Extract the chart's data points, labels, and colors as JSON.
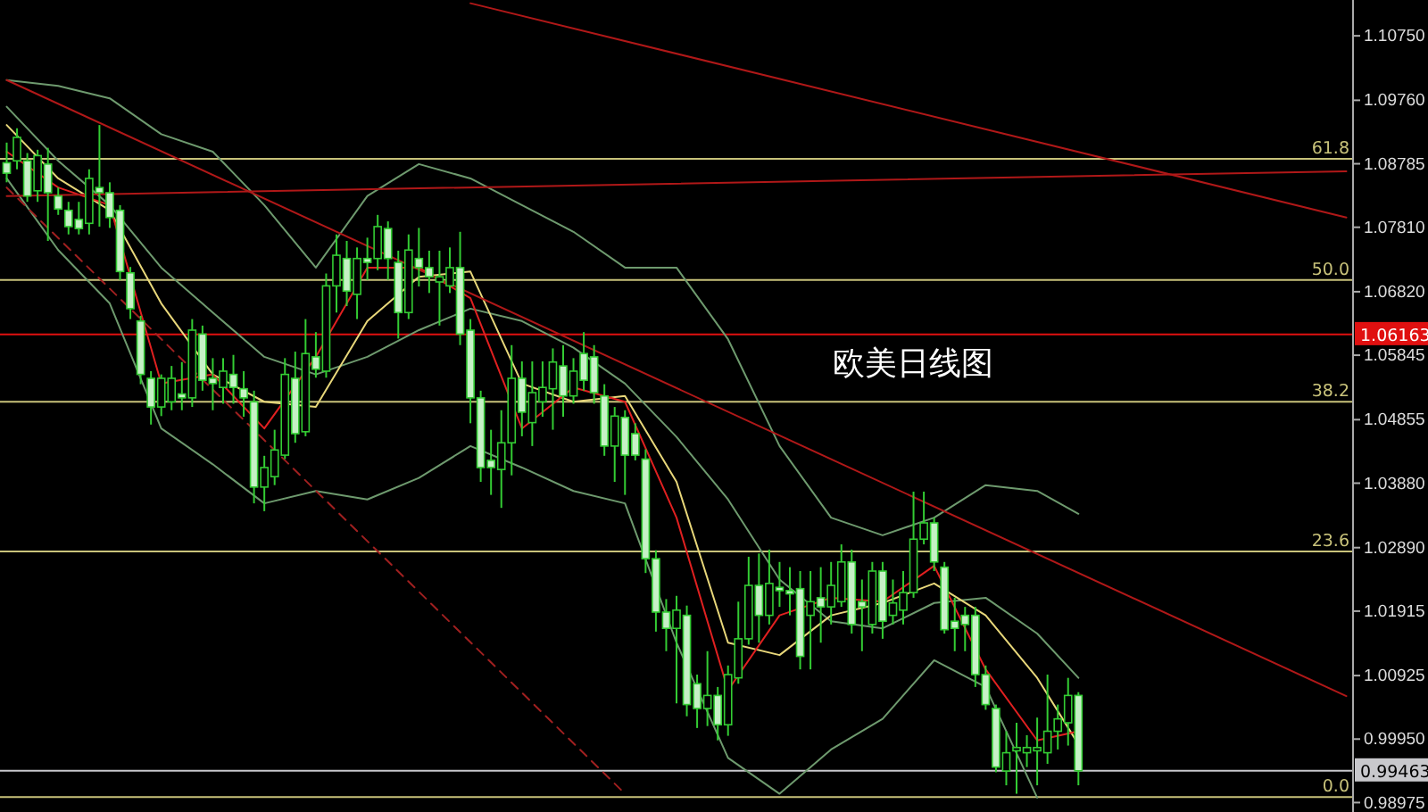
{
  "chart_data": {
    "type": "candlestick",
    "title": "欧美日线图",
    "color": "#33cc33",
    "categories": [
      null,
      null,
      null,
      null,
      null,
      null,
      null,
      null,
      null,
      null,
      null,
      null,
      null,
      null,
      null,
      null,
      null,
      null,
      null,
      null,
      null,
      null,
      null,
      null,
      null,
      null,
      null,
      null,
      null,
      null,
      null,
      null,
      null,
      null,
      null,
      null,
      null,
      null,
      null,
      null,
      null,
      null,
      null,
      null,
      null,
      null,
      null,
      null,
      null,
      null,
      null,
      null,
      null,
      null,
      null,
      null,
      null,
      null,
      null,
      null,
      null,
      null,
      null,
      null,
      null,
      null,
      null,
      null,
      null,
      null,
      null,
      null,
      null,
      null,
      null,
      null,
      null,
      null,
      null,
      null,
      null,
      null,
      null,
      null,
      null,
      null,
      null,
      null,
      null,
      null,
      null,
      null,
      null,
      null,
      null,
      null,
      null,
      null,
      null,
      null,
      null,
      null,
      null,
      null,
      null,
      null,
      null,
      null,
      null,
      null,
      null,
      null,
      null,
      null,
      null,
      null,
      null,
      null,
      null,
      null,
      null,
      null,
      null,
      null,
      null,
      null,
      null,
      null,
      null,
      null,
      null
    ],
    "ohlc": [
      [
        1.088,
        1.0911,
        1.085,
        1.0864
      ],
      [
        1.0883,
        1.0933,
        1.087,
        1.0919
      ],
      [
        1.0883,
        1.0895,
        1.082,
        1.0829
      ],
      [
        1.0837,
        1.09,
        1.082,
        1.0891
      ],
      [
        1.0878,
        1.0903,
        1.076,
        1.0834
      ],
      [
        1.0829,
        1.0842,
        1.08,
        1.0809
      ],
      [
        1.0807,
        1.082,
        1.077,
        1.0782
      ],
      [
        1.0793,
        1.082,
        1.077,
        1.0779
      ],
      [
        1.0787,
        1.087,
        1.077,
        1.0856
      ],
      [
        1.0842,
        1.0938,
        1.0782,
        1.0834
      ],
      [
        1.0834,
        1.085,
        1.078,
        1.0796
      ],
      [
        1.0807,
        1.0815,
        1.07,
        1.0713
      ],
      [
        1.0711,
        1.072,
        1.064,
        1.0656
      ],
      [
        1.0637,
        1.0645,
        1.054,
        1.0555
      ],
      [
        1.0549,
        1.056,
        1.0478,
        1.0505
      ],
      [
        1.0505,
        1.0555,
        1.0491,
        1.0549
      ],
      [
        1.0513,
        1.0568,
        1.05,
        1.0549
      ],
      [
        1.0525,
        1.0574,
        1.05,
        1.0519
      ],
      [
        1.0519,
        1.064,
        1.0505,
        1.0623
      ],
      [
        1.0617,
        1.063,
        1.053,
        1.0546
      ],
      [
        1.0549,
        1.058,
        1.05,
        1.0541
      ],
      [
        1.0535,
        1.058,
        1.051,
        1.056
      ],
      [
        1.0555,
        1.0585,
        1.051,
        1.0535
      ],
      [
        1.0533,
        1.056,
        1.049,
        1.0519
      ],
      [
        1.0513,
        1.053,
        1.0357,
        1.0382
      ],
      [
        1.0382,
        1.043,
        1.0345,
        1.0412
      ],
      [
        1.0398,
        1.047,
        1.0385,
        1.0439
      ],
      [
        1.0431,
        1.058,
        1.0425,
        1.0555
      ],
      [
        1.0549,
        1.059,
        1.045,
        1.0464
      ],
      [
        1.0467,
        1.064,
        1.046,
        1.0587
      ],
      [
        1.0582,
        1.062,
        1.055,
        1.0563
      ],
      [
        1.056,
        1.071,
        1.055,
        1.0691
      ],
      [
        1.0691,
        1.077,
        1.065,
        1.0738
      ],
      [
        1.0733,
        1.076,
        1.066,
        1.0683
      ],
      [
        1.0678,
        1.075,
        1.064,
        1.0733
      ],
      [
        1.0733,
        1.0765,
        1.07,
        1.0727
      ],
      [
        1.0733,
        1.08,
        1.0715,
        1.0782
      ],
      [
        1.0779,
        1.079,
        1.07,
        1.0733
      ],
      [
        1.0727,
        1.0745,
        1.061,
        1.065
      ],
      [
        1.065,
        1.077,
        1.064,
        1.0746
      ],
      [
        1.0733,
        1.078,
        1.069,
        1.0719
      ],
      [
        1.0719,
        1.0745,
        1.068,
        1.0705
      ],
      [
        1.0697,
        1.0745,
        1.063,
        1.0705
      ],
      [
        1.0691,
        1.075,
        1.068,
        1.0719
      ],
      [
        1.0719,
        1.0774,
        1.06,
        1.0617
      ],
      [
        1.0623,
        1.064,
        1.048,
        1.0519
      ],
      [
        1.0519,
        1.053,
        1.039,
        1.0412
      ],
      [
        1.0423,
        1.047,
        1.037,
        1.0412
      ],
      [
        1.0409,
        1.05,
        1.035,
        1.045
      ],
      [
        1.045,
        1.06,
        1.04,
        1.0549
      ],
      [
        1.0549,
        1.0575,
        1.046,
        1.0497
      ],
      [
        1.0481,
        1.0575,
        1.0445,
        1.0527
      ],
      [
        1.0513,
        1.0575,
        1.049,
        1.0535
      ],
      [
        1.0533,
        1.0595,
        1.047,
        1.0574
      ],
      [
        1.0568,
        1.06,
        1.049,
        1.0522
      ],
      [
        1.0522,
        1.058,
        1.051,
        1.056
      ],
      [
        1.0587,
        1.062,
        1.053,
        1.0546
      ],
      [
        1.0582,
        1.06,
        1.051,
        1.0527
      ],
      [
        1.0522,
        1.054,
        1.043,
        1.0445
      ],
      [
        1.0445,
        1.0505,
        1.039,
        1.0491
      ],
      [
        1.0489,
        1.05,
        1.037,
        1.0431
      ],
      [
        1.0464,
        1.048,
        1.0423,
        1.0431
      ],
      [
        1.0425,
        1.044,
        1.025,
        1.0272
      ],
      [
        1.0272,
        1.0285,
        1.016,
        1.019
      ],
      [
        1.019,
        1.021,
        1.013,
        1.0165
      ],
      [
        1.0165,
        1.0215,
        1.005,
        1.0193
      ],
      [
        1.0185,
        1.02,
        1.003,
        1.0048
      ],
      [
        1.008,
        1.0094,
        1.0012,
        1.0042
      ],
      [
        1.0042,
        1.013,
        1.0015,
        1.0062
      ],
      [
        1.0062,
        1.0075,
        0.9993,
        1.0017
      ],
      [
        1.0017,
        1.0108,
        1.0,
        1.0094
      ],
      [
        1.0089,
        1.0206,
        1.008,
        1.0149
      ],
      [
        1.0149,
        1.0275,
        1.014,
        1.0231
      ],
      [
        1.0231,
        1.028,
        1.0143,
        1.0185
      ],
      [
        1.0185,
        1.0286,
        1.0171,
        1.0234
      ],
      [
        1.0228,
        1.0267,
        1.0198,
        1.0223
      ],
      [
        1.0223,
        1.0259,
        1.0185,
        1.0218
      ],
      [
        1.0226,
        1.0253,
        1.0102,
        1.0122
      ],
      [
        1.0185,
        1.0253,
        1.0102,
        1.0206
      ],
      [
        1.0212,
        1.0259,
        1.0143,
        1.0198
      ],
      [
        1.0198,
        1.0267,
        1.0171,
        1.0231
      ],
      [
        1.0206,
        1.0294,
        1.0198,
        1.0267
      ],
      [
        1.0267,
        1.0286,
        1.0157,
        1.0171
      ],
      [
        1.0206,
        1.024,
        1.013,
        1.0198
      ],
      [
        1.0171,
        1.0267,
        1.0157,
        1.0253
      ],
      [
        1.0253,
        1.0267,
        1.0149,
        1.0176
      ],
      [
        1.0185,
        1.024,
        1.0171,
        1.0204
      ],
      [
        1.0193,
        1.0253,
        1.0171,
        1.022
      ],
      [
        1.022,
        1.0375,
        1.0212,
        1.0302
      ],
      [
        1.0302,
        1.0375,
        1.0294,
        1.0327
      ],
      [
        1.0327,
        1.0335,
        1.0253,
        1.0267
      ],
      [
        1.0259,
        1.0267,
        1.0157,
        1.0163
      ],
      [
        1.0176,
        1.0212,
        1.013,
        1.0165
      ],
      [
        1.0185,
        1.0198,
        1.013,
        1.0171
      ],
      [
        1.0185,
        1.0198,
        1.0075,
        1.0094
      ],
      [
        1.0094,
        1.0108,
        1.004,
        1.0048
      ],
      [
        1.0042,
        1.0048,
        0.9944,
        0.9952
      ],
      [
        0.9946,
        1.0007,
        0.9924,
        0.9974
      ],
      [
        0.9977,
        1.002,
        0.9911,
        0.9982
      ],
      [
        0.9974,
        1.0001,
        0.9952,
        0.9982
      ],
      [
        0.9977,
        1.0028,
        0.9924,
        0.9982
      ],
      [
        0.9974,
        1.0094,
        0.9957,
        1.0007
      ],
      [
        1.0007,
        1.0048,
        0.9979,
        1.0026
      ],
      [
        1.002,
        1.0089,
        0.9985,
        1.0062
      ],
      [
        1.0062,
        1.0067,
        0.9924,
        0.99463
      ],
      null,
      null,
      null,
      null,
      null,
      null,
      null,
      null,
      null,
      null,
      null,
      null,
      null,
      null,
      null,
      null,
      null,
      null,
      null,
      null,
      null,
      null,
      null,
      null,
      null,
      null
    ],
    "series": [
      {
        "type": "line",
        "color": "#6e9a6e",
        "values": [
          1.1007,
          null,
          null,
          null,
          null,
          1.0998,
          null,
          null,
          null,
          null,
          1.0979,
          null,
          null,
          null,
          null,
          1.0924,
          null,
          null,
          null,
          null,
          1.0897,
          null,
          null,
          null,
          null,
          1.0815,
          null,
          null,
          null,
          null,
          1.0719,
          null,
          null,
          null,
          null,
          1.0829,
          null,
          null,
          null,
          null,
          1.0878,
          null,
          null,
          null,
          null,
          1.0856,
          null,
          null,
          null,
          null,
          1.0815,
          null,
          null,
          null,
          null,
          1.0774,
          null,
          null,
          null,
          null,
          1.0719,
          null,
          null,
          null,
          null,
          1.0719,
          null,
          null,
          null,
          null,
          1.0609,
          null,
          null,
          null,
          null,
          1.0445,
          null,
          null,
          null,
          null,
          1.0335,
          null,
          null,
          null,
          null,
          1.0308,
          null,
          null,
          null,
          null,
          1.0335,
          null,
          null,
          null,
          null,
          1.0385,
          null,
          null,
          null,
          null,
          1.0376,
          null,
          null,
          null,
          1.0341,
          null,
          null,
          null,
          null,
          null,
          null,
          null,
          null,
          null,
          null,
          null,
          null,
          null,
          null,
          null,
          null,
          null,
          null,
          null,
          null,
          null,
          null,
          null,
          null,
          null,
          null
        ]
      },
      {
        "type": "line",
        "color": "#6e9a6e",
        "values": [
          1.0966,
          null,
          null,
          null,
          null,
          1.0883,
          null,
          null,
          null,
          null,
          1.0815,
          null,
          null,
          null,
          null,
          1.0719,
          null,
          null,
          null,
          null,
          1.065,
          null,
          null,
          null,
          null,
          1.0582,
          null,
          null,
          null,
          null,
          1.0555,
          null,
          null,
          null,
          null,
          1.0582,
          null,
          null,
          null,
          null,
          1.0623,
          null,
          null,
          null,
          null,
          1.0656,
          null,
          null,
          null,
          null,
          1.0637,
          null,
          null,
          null,
          null,
          1.0596,
          null,
          null,
          null,
          null,
          1.0541,
          null,
          null,
          null,
          null,
          1.0459,
          null,
          null,
          null,
          null,
          1.0363,
          null,
          null,
          null,
          null,
          1.024,
          null,
          null,
          null,
          null,
          1.0176,
          null,
          null,
          null,
          null,
          1.0165,
          null,
          null,
          null,
          null,
          1.0204,
          null,
          null,
          null,
          null,
          1.0212,
          null,
          null,
          null,
          null,
          1.0157,
          null,
          null,
          null,
          1.0089,
          null,
          null,
          null,
          null,
          null,
          null,
          null,
          null,
          null,
          null,
          null,
          null,
          null,
          null,
          null,
          null,
          null,
          null,
          null,
          null,
          null,
          null,
          null,
          null,
          null,
          null
        ]
      },
      {
        "type": "line",
        "color": "#6e9a6e",
        "values": [
          1.0856,
          null,
          null,
          null,
          null,
          1.0746,
          null,
          null,
          null,
          null,
          1.0664,
          null,
          null,
          null,
          null,
          1.0472,
          null,
          null,
          null,
          null,
          1.0417,
          null,
          null,
          null,
          null,
          1.0357,
          null,
          null,
          null,
          null,
          1.0376,
          null,
          null,
          null,
          null,
          1.0363,
          null,
          null,
          null,
          null,
          1.0396,
          null,
          null,
          null,
          null,
          1.0445,
          null,
          null,
          null,
          null,
          1.0412,
          null,
          null,
          null,
          null,
          1.0376,
          null,
          null,
          null,
          null,
          1.0357,
          null,
          null,
          null,
          null,
          1.0143,
          null,
          null,
          null,
          null,
          0.9966,
          null,
          null,
          null,
          null,
          0.9911,
          null,
          null,
          null,
          null,
          0.9979,
          null,
          null,
          null,
          null,
          1.0026,
          null,
          null,
          null,
          null,
          1.0116,
          null,
          null,
          null,
          null,
          1.0075,
          null,
          null,
          null,
          null,
          0.9905,
          null,
          null,
          null,
          null,
          null,
          null,
          null,
          null,
          null,
          null,
          null,
          null,
          null,
          null,
          null,
          null,
          null,
          null,
          null,
          null,
          null,
          null,
          null,
          null,
          null,
          null,
          null,
          null,
          null,
          null
        ]
      },
      {
        "type": "line",
        "color": "#e8d77a",
        "values": [
          1.0938,
          null,
          null,
          null,
          null,
          1.0856,
          null,
          null,
          null,
          null,
          1.0807,
          null,
          null,
          null,
          null,
          1.0664,
          null,
          null,
          null,
          null,
          1.0555,
          null,
          null,
          null,
          null,
          1.0513,
          null,
          null,
          null,
          null,
          1.0505,
          null,
          null,
          null,
          null,
          1.0637,
          null,
          null,
          null,
          null,
          1.0705,
          null,
          null,
          null,
          null,
          1.0713,
          null,
          null,
          null,
          null,
          1.0541,
          null,
          null,
          null,
          null,
          1.0513,
          null,
          null,
          null,
          null,
          1.0522,
          null,
          null,
          null,
          null,
          1.039,
          null,
          null,
          null,
          null,
          1.0143,
          null,
          null,
          null,
          null,
          1.0124,
          null,
          null,
          null,
          null,
          1.0185,
          null,
          null,
          null,
          null,
          1.0204,
          null,
          null,
          null,
          null,
          1.0234,
          null,
          null,
          null,
          null,
          1.0185,
          null,
          null,
          null,
          null,
          1.0089,
          null,
          null,
          null,
          0.9987,
          null,
          null,
          null,
          null,
          null,
          null,
          null,
          null,
          null,
          null,
          null,
          null,
          null,
          null,
          null,
          null,
          null,
          null,
          null,
          null,
          null,
          null,
          null,
          null,
          null,
          null
        ]
      },
      {
        "type": "line",
        "color": "#e02020",
        "values": [
          1.0897,
          null,
          null,
          null,
          null,
          1.0842,
          null,
          null,
          null,
          null,
          1.0815,
          null,
          null,
          null,
          null,
          1.0541,
          null,
          null,
          null,
          null,
          1.0555,
          null,
          null,
          null,
          null,
          1.0472,
          null,
          null,
          null,
          null,
          1.0582,
          null,
          null,
          null,
          null,
          1.0719,
          null,
          null,
          null,
          null,
          1.0719,
          null,
          null,
          null,
          null,
          1.0672,
          null,
          null,
          null,
          null,
          1.0472,
          null,
          null,
          null,
          null,
          1.0535,
          null,
          null,
          null,
          null,
          1.0513,
          null,
          null,
          null,
          null,
          1.0335,
          null,
          null,
          null,
          null,
          1.007,
          null,
          null,
          null,
          null,
          1.0185,
          null,
          null,
          null,
          null,
          1.0212,
          null,
          null,
          null,
          null,
          1.0206,
          null,
          null,
          null,
          null,
          1.0261,
          null,
          null,
          null,
          null,
          1.0102,
          null,
          null,
          null,
          null,
          0.9993,
          null,
          null,
          null,
          1.0007,
          null,
          null,
          null,
          null,
          null,
          null,
          null,
          null,
          null,
          null,
          null,
          null,
          null,
          null,
          null,
          null,
          null,
          null,
          null,
          null,
          null,
          null,
          null,
          null,
          null,
          null
        ]
      },
      {
        "type": "line",
        "color": "#b01818",
        "values": [
          null,
          null,
          null,
          null,
          null,
          null,
          null,
          null,
          null,
          null,
          null,
          null,
          null,
          null,
          null,
          null,
          null,
          null,
          null,
          null,
          null,
          null,
          null,
          null,
          null,
          null,
          null,
          null,
          null,
          null,
          null,
          null,
          null,
          null,
          null,
          null,
          null,
          null,
          null,
          null,
          null,
          null,
          null,
          null,
          null,
          1.1125,
          null,
          null,
          null,
          null,
          null,
          null,
          null,
          null,
          null,
          null,
          null,
          null,
          null,
          null,
          null,
          null,
          null,
          null,
          null,
          null,
          null,
          null,
          null,
          null,
          null,
          null,
          null,
          null,
          null,
          null,
          null,
          null,
          null,
          null,
          null,
          null,
          null,
          null,
          null,
          null,
          null,
          null,
          null,
          null,
          null,
          null,
          null,
          null,
          null,
          null,
          null,
          null,
          null,
          null,
          null,
          null,
          null,
          null,
          null,
          null,
          null,
          null,
          null,
          null,
          null,
          null,
          null,
          null,
          null,
          null,
          null,
          null,
          null,
          null,
          null,
          null,
          null,
          null,
          null,
          null,
          null,
          null,
          null,
          null,
          1.0796
        ]
      },
      {
        "type": "line",
        "color": "#b01818",
        "values": [
          1.0829,
          null,
          null,
          null,
          null,
          null,
          null,
          null,
          null,
          null,
          null,
          null,
          null,
          null,
          null,
          null,
          null,
          null,
          null,
          null,
          null,
          null,
          null,
          null,
          null,
          null,
          null,
          null,
          null,
          null,
          null,
          null,
          null,
          null,
          null,
          null,
          null,
          null,
          null,
          null,
          null,
          null,
          null,
          null,
          null,
          null,
          null,
          null,
          null,
          null,
          null,
          null,
          null,
          null,
          null,
          null,
          null,
          null,
          null,
          null,
          null,
          null,
          null,
          null,
          null,
          null,
          null,
          null,
          null,
          null,
          null,
          null,
          null,
          null,
          null,
          null,
          null,
          null,
          null,
          null,
          null,
          null,
          null,
          null,
          null,
          null,
          null,
          null,
          null,
          null,
          null,
          null,
          null,
          null,
          null,
          null,
          null,
          null,
          null,
          null,
          null,
          null,
          null,
          null,
          null,
          null,
          null,
          null,
          null,
          null,
          null,
          null,
          null,
          null,
          null,
          null,
          null,
          null,
          null,
          null,
          null,
          null,
          null,
          null,
          null,
          null,
          null,
          null,
          null,
          null,
          1.0867
        ]
      },
      {
        "type": "line",
        "color": "#b01818",
        "values": [
          1.1007,
          null,
          null,
          null,
          null,
          null,
          null,
          null,
          null,
          null,
          null,
          null,
          null,
          null,
          null,
          null,
          null,
          null,
          null,
          null,
          null,
          null,
          null,
          null,
          null,
          null,
          null,
          null,
          null,
          null,
          null,
          null,
          null,
          null,
          null,
          null,
          null,
          null,
          null,
          null,
          null,
          null,
          null,
          null,
          null,
          null,
          null,
          null,
          null,
          null,
          null,
          null,
          null,
          null,
          null,
          null,
          null,
          null,
          null,
          null,
          null,
          null,
          null,
          null,
          null,
          null,
          null,
          null,
          null,
          null,
          null,
          null,
          null,
          null,
          null,
          null,
          null,
          null,
          null,
          null,
          null,
          null,
          null,
          null,
          null,
          null,
          null,
          null,
          null,
          null,
          null,
          null,
          null,
          null,
          null,
          null,
          null,
          null,
          null,
          null,
          null,
          null,
          null,
          null,
          null,
          null,
          null,
          null,
          null,
          null,
          null,
          null,
          null,
          null,
          null,
          null,
          null,
          null,
          null,
          null,
          null,
          null,
          null,
          null,
          null,
          null,
          null,
          null,
          null,
          null,
          1.0061
        ]
      },
      {
        "type": "line",
        "color": "#a02020",
        "line_style": "dashed",
        "values": [
          1.0842,
          null,
          null,
          null,
          null,
          null,
          null,
          null,
          null,
          null,
          null,
          null,
          null,
          null,
          null,
          null,
          null,
          null,
          null,
          null,
          null,
          null,
          null,
          null,
          null,
          null,
          null,
          null,
          null,
          null,
          null,
          null,
          null,
          null,
          null,
          null,
          null,
          null,
          null,
          null,
          null,
          null,
          null,
          null,
          null,
          null,
          null,
          null,
          null,
          null,
          null,
          null,
          null,
          null,
          null,
          null,
          null,
          null,
          null,
          null,
          0.9911,
          null,
          null,
          null,
          null,
          null,
          null,
          null,
          null,
          null,
          null,
          null,
          null,
          null,
          null,
          null,
          null,
          null,
          null,
          null,
          null,
          null,
          null,
          null,
          null,
          null,
          null,
          null,
          null,
          null,
          null,
          null,
          null,
          null,
          null,
          null,
          null,
          null,
          null,
          null,
          null,
          null,
          null,
          null,
          null,
          null,
          null,
          null,
          null,
          null,
          null,
          null,
          null,
          null,
          null,
          null,
          null,
          null,
          null,
          null,
          null,
          null,
          null,
          null,
          null,
          null,
          null,
          null,
          null,
          null,
          null
        ]
      }
    ],
    "ylim": [
      0.9883,
      1.113
    ],
    "yticks": [
      {
        "value": 1.1075,
        "label": "1.10750"
      },
      {
        "value": 1.0976,
        "label": "1.09760"
      },
      1.08785,
      {
        "value": 1.0781,
        "label": "1.07810"
      },
      {
        "value": 1.0682,
        "label": "1.06820"
      },
      1.05845,
      1.04855,
      {
        "value": 1.0388,
        "label": "1.03880"
      },
      {
        "value": 1.0289,
        "label": "1.02890"
      },
      1.01915,
      1.00925,
      {
        "value": 0.9995,
        "label": "0.99950"
      },
      0.98975
    ],
    "ref_lines": [
      {
        "axis": "y",
        "value": 1.0886,
        "color": "#c8c27a"
      },
      {
        "axis": "y",
        "value": 1.07,
        "color": "#c8c27a"
      },
      {
        "axis": "y",
        "value": 1.0513,
        "color": "#c8c27a"
      },
      {
        "axis": "y",
        "value": 1.0283,
        "color": "#c8c27a"
      },
      {
        "axis": "y",
        "value": 0.9906,
        "color": "#c8c27a"
      },
      {
        "axis": "y",
        "value": 1.06163,
        "label": "1.06163",
        "color": "#e01010"
      },
      {
        "axis": "y",
        "value": 0.99463,
        "label": "0.99463",
        "color": "#c8c8cc"
      }
    ],
    "annotations": [
      {
        "text": "61.8",
        "y": 1.0886
      },
      {
        "text": "50.0",
        "y": 1.07
      },
      {
        "text": "38.2",
        "y": 1.0513
      },
      {
        "text": "23.6",
        "y": 1.0283
      },
      {
        "text": "0.0",
        "y": 0.9906
      }
    ],
    "tick_labels": "y"
  }
}
